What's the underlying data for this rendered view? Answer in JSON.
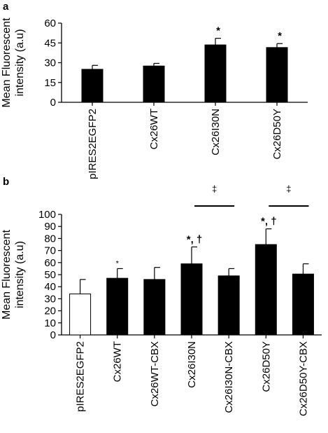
{
  "chart_data": [
    {
      "panel": "a",
      "type": "bar",
      "ylabel_lines": [
        "Mean Fluorescent",
        "intensity (a.u)"
      ],
      "ylim": [
        0,
        60
      ],
      "yticks": [
        "0",
        "15",
        "30",
        "45",
        "60"
      ],
      "categories": [
        "pIRES2EGFP2",
        "Cx26WT",
        "Cx26I30N",
        "Cx26D50Y"
      ],
      "values": [
        25,
        27.5,
        43.5,
        41.5
      ],
      "errors": [
        3,
        2,
        5,
        3
      ],
      "fills": [
        "#000000",
        "#000000",
        "#000000",
        "#000000"
      ],
      "annotations": [
        "",
        "",
        "*",
        "*"
      ],
      "brackets": []
    },
    {
      "panel": "b",
      "type": "bar",
      "ylabel_lines": [
        "Mean Fluorescent",
        "intensity (a.u)"
      ],
      "ylim": [
        0,
        100
      ],
      "yticks": [
        "0",
        "10",
        "20",
        "30",
        "40",
        "50",
        "60",
        "70",
        "80",
        "90",
        "100"
      ],
      "categories": [
        "pIRES2EGFP2",
        "Cx26WT",
        "Cx26WT-CBX",
        "Cx26I30N",
        "Cx26I30N-CBX",
        "Cx26D50Y",
        "Cx26D50Y-CBX"
      ],
      "values": [
        34,
        47,
        46,
        59,
        49,
        75,
        50.5
      ],
      "errors": [
        12,
        8,
        10,
        14,
        6,
        13,
        8.5
      ],
      "fills": [
        "#ffffff",
        "#000000",
        "#000000",
        "#000000",
        "#000000",
        "#000000",
        "#000000"
      ],
      "annotations": [
        "",
        "*",
        "",
        "*, †",
        "",
        "*, †",
        ""
      ],
      "brackets": [
        {
          "from": 3,
          "to": 4,
          "symbol": "‡"
        },
        {
          "from": 5,
          "to": 6,
          "symbol": "‡"
        }
      ]
    }
  ]
}
